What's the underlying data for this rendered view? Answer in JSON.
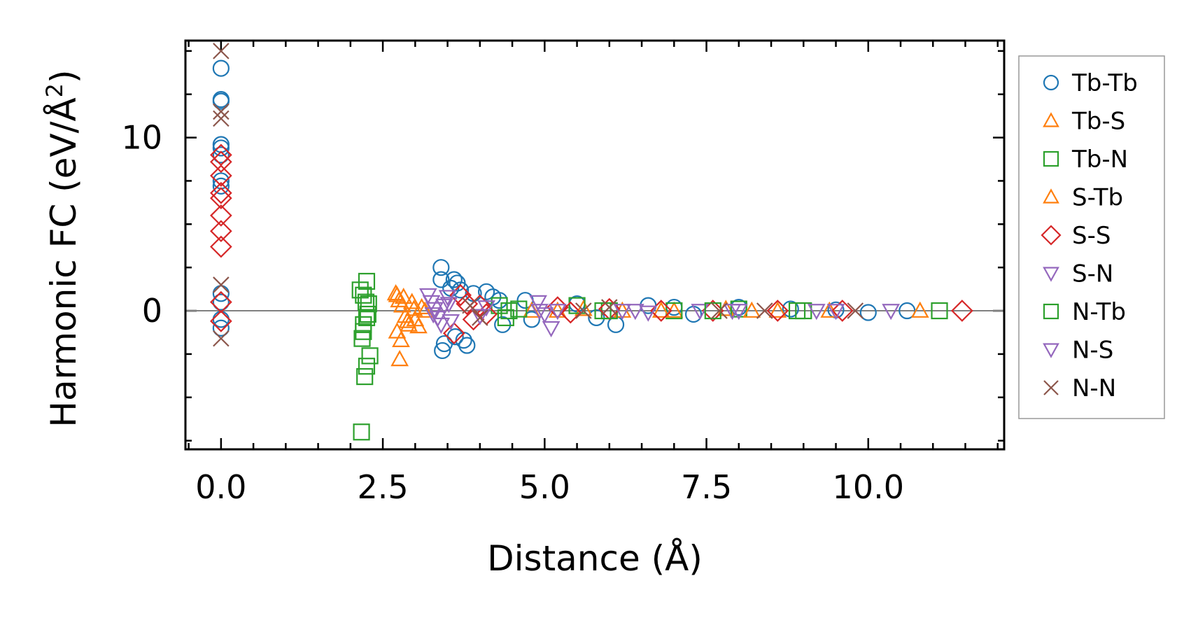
{
  "chart_data": {
    "type": "scatter",
    "title": "",
    "xlabel": "Distance (Å)",
    "ylabel_main": "Harmonic FC (eV/Å",
    "ylabel_sup": "2",
    "ylabel_end": ")",
    "xlim": [
      -0.55,
      12.1
    ],
    "ylim": [
      -8.0,
      15.6
    ],
    "xticks": [
      0.0,
      2.5,
      5.0,
      7.5,
      10.0
    ],
    "xtick_labels": [
      "0.0",
      "2.5",
      "5.0",
      "7.5",
      "10.0"
    ],
    "yticks": [
      0,
      10
    ],
    "ytick_labels": [
      "0",
      "10"
    ],
    "reference_line_y": 0,
    "legend_position": "outside-right",
    "series": [
      {
        "name": "Tb-Tb",
        "marker": "circle",
        "color": "#1f77b4",
        "points": [
          [
            0.0,
            14.0
          ],
          [
            0.0,
            12.2
          ],
          [
            0.0,
            12.1
          ],
          [
            0.0,
            9.6
          ],
          [
            0.0,
            9.4
          ],
          [
            0.0,
            9.0
          ],
          [
            0.0,
            7.5
          ],
          [
            0.0,
            7.2
          ],
          [
            0.0,
            1.0
          ],
          [
            0.0,
            0.5
          ],
          [
            0.0,
            -0.5
          ],
          [
            0.0,
            -1.0
          ],
          [
            3.4,
            2.5
          ],
          [
            3.4,
            1.8
          ],
          [
            3.42,
            -2.3
          ],
          [
            3.45,
            -1.9
          ],
          [
            3.6,
            1.8
          ],
          [
            3.65,
            1.6
          ],
          [
            3.7,
            1.2
          ],
          [
            3.75,
            -1.7
          ],
          [
            3.8,
            -2.0
          ],
          [
            3.55,
            1.3
          ],
          [
            3.62,
            -1.5
          ],
          [
            3.9,
            1.0
          ],
          [
            4.1,
            1.1
          ],
          [
            4.2,
            0.8
          ],
          [
            4.3,
            0.6
          ],
          [
            4.35,
            -0.8
          ],
          [
            4.7,
            0.6
          ],
          [
            4.8,
            -0.5
          ],
          [
            5.5,
            0.4
          ],
          [
            5.8,
            -0.4
          ],
          [
            6.1,
            -0.8
          ],
          [
            6.6,
            0.3
          ],
          [
            7.0,
            0.2
          ],
          [
            7.3,
            -0.2
          ],
          [
            8.0,
            0.2
          ],
          [
            8.8,
            0.1
          ],
          [
            9.5,
            0.05
          ],
          [
            10.0,
            -0.1
          ],
          [
            10.6,
            0.0
          ]
        ]
      },
      {
        "name": "Tb-S",
        "marker": "triangle-up",
        "color": "#ff7f0e",
        "points": [
          [
            2.7,
            1.0
          ],
          [
            2.75,
            0.6
          ],
          [
            2.8,
            0.3
          ],
          [
            2.85,
            -0.3
          ],
          [
            2.9,
            -0.8
          ],
          [
            2.72,
            -1.2
          ],
          [
            2.78,
            -1.7
          ],
          [
            2.76,
            -2.8
          ],
          [
            2.95,
            0.5
          ],
          [
            3.0,
            -0.5
          ],
          [
            3.1,
            0.2
          ],
          [
            2.82,
            0.8
          ],
          [
            3.05,
            -0.9
          ],
          [
            4.8,
            0.0
          ],
          [
            5.6,
            0.1
          ],
          [
            6.2,
            0.0
          ],
          [
            7.0,
            0.0
          ],
          [
            7.8,
            0.1
          ],
          [
            8.6,
            0.0
          ],
          [
            10.8,
            0.0
          ]
        ]
      },
      {
        "name": "Tb-N",
        "marker": "square",
        "color": "#2ca02c",
        "points": [
          [
            2.15,
            1.2
          ],
          [
            2.2,
            0.9
          ],
          [
            2.2,
            -1.2
          ],
          [
            2.25,
            1.7
          ],
          [
            2.25,
            -0.4
          ],
          [
            2.3,
            -2.6
          ],
          [
            2.25,
            -3.2
          ],
          [
            2.22,
            -3.8
          ],
          [
            2.17,
            -7.0
          ],
          [
            2.18,
            -1.6
          ],
          [
            2.28,
            0.4
          ],
          [
            4.3,
            0.3
          ],
          [
            4.4,
            -0.4
          ],
          [
            4.6,
            0.1
          ],
          [
            5.5,
            0.3
          ],
          [
            6.0,
            0.0
          ],
          [
            7.0,
            0.0
          ],
          [
            8.0,
            0.1
          ],
          [
            9.0,
            0.0
          ],
          [
            11.1,
            0.0
          ]
        ]
      },
      {
        "name": "S-Tb",
        "marker": "triangle-up",
        "color": "#ff7f0e",
        "points": [
          [
            2.72,
            0.9
          ],
          [
            2.88,
            -0.6
          ],
          [
            2.98,
            0.1
          ],
          [
            3.15,
            0.0
          ],
          [
            5.2,
            0.0
          ],
          [
            6.8,
            0.0
          ],
          [
            8.2,
            0.0
          ],
          [
            9.4,
            0.0
          ]
        ]
      },
      {
        "name": "S-S",
        "marker": "diamond",
        "color": "#d62728",
        "points": [
          [
            0.0,
            9.0
          ],
          [
            0.0,
            8.6
          ],
          [
            0.0,
            7.8
          ],
          [
            0.0,
            6.8
          ],
          [
            0.0,
            6.5
          ],
          [
            0.0,
            5.5
          ],
          [
            0.0,
            4.6
          ],
          [
            0.0,
            3.7
          ],
          [
            0.0,
            0.5
          ],
          [
            0.0,
            -0.6
          ],
          [
            3.6,
            -1.3
          ],
          [
            3.7,
            0.9
          ],
          [
            3.8,
            0.4
          ],
          [
            3.9,
            -0.5
          ],
          [
            4.0,
            0.3
          ],
          [
            4.1,
            -0.2
          ],
          [
            5.2,
            0.2
          ],
          [
            5.4,
            -0.1
          ],
          [
            6.0,
            0.1
          ],
          [
            6.8,
            0.0
          ],
          [
            7.6,
            0.0
          ],
          [
            8.6,
            0.0
          ],
          [
            9.6,
            0.0
          ],
          [
            11.45,
            0.0
          ]
        ]
      },
      {
        "name": "S-N",
        "marker": "triangle-down",
        "color": "#9467bd",
        "points": [
          [
            3.2,
            0.9
          ],
          [
            3.25,
            0.5
          ],
          [
            3.3,
            0.1
          ],
          [
            3.35,
            -0.4
          ],
          [
            3.4,
            -0.8
          ],
          [
            3.5,
            0.8
          ],
          [
            3.55,
            -0.6
          ],
          [
            3.45,
            0.3
          ],
          [
            4.0,
            -0.3
          ],
          [
            4.1,
            0.2
          ],
          [
            4.9,
            0.5
          ],
          [
            5.0,
            -0.2
          ],
          [
            5.1,
            -1.0
          ],
          [
            5.2,
            0.0
          ],
          [
            6.2,
            0.0
          ],
          [
            6.6,
            -0.1
          ],
          [
            7.4,
            0.0
          ],
          [
            8.0,
            0.0
          ],
          [
            9.2,
            0.0
          ],
          [
            10.35,
            0.0
          ]
        ]
      },
      {
        "name": "N-Tb",
        "marker": "square",
        "color": "#2ca02c",
        "points": [
          [
            2.2,
            -0.8
          ],
          [
            2.24,
            0.5
          ],
          [
            2.27,
            -0.2
          ],
          [
            4.45,
            0.0
          ],
          [
            5.9,
            0.0
          ],
          [
            7.6,
            0.0
          ],
          [
            8.9,
            0.0
          ]
        ]
      },
      {
        "name": "N-S",
        "marker": "triangle-down",
        "color": "#9467bd",
        "points": [
          [
            3.28,
            -0.2
          ],
          [
            3.52,
            0.4
          ],
          [
            4.92,
            0.0
          ],
          [
            6.4,
            0.0
          ],
          [
            7.9,
            0.0
          ],
          [
            9.5,
            0.0
          ]
        ]
      },
      {
        "name": "N-N",
        "marker": "x",
        "color": "#8c564b",
        "points": [
          [
            0.0,
            15.0
          ],
          [
            0.0,
            11.5
          ],
          [
            0.0,
            11.1
          ],
          [
            0.0,
            1.5
          ],
          [
            0.0,
            -1.6
          ],
          [
            3.85,
            0.3
          ],
          [
            4.0,
            -0.4
          ],
          [
            5.6,
            0.0
          ],
          [
            6.0,
            0.2
          ],
          [
            7.7,
            0.0
          ],
          [
            8.4,
            0.0
          ],
          [
            9.8,
            0.0
          ]
        ]
      }
    ]
  }
}
